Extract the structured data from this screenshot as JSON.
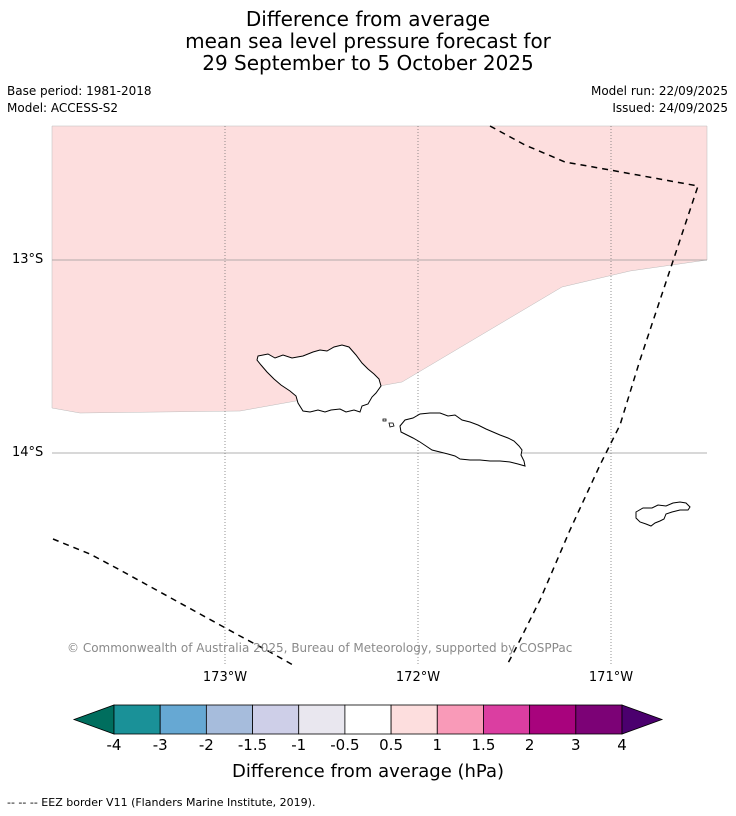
{
  "title": {
    "line1": "Difference from average",
    "line2": "mean sea level pressure forecast for",
    "line3": "29 September to 5 October 2025"
  },
  "meta": {
    "base_period": "Base period: 1981-2018",
    "model": "Model: ACCESS-S2",
    "model_run": "Model run: 22/09/2025",
    "issued": "Issued: 24/09/2025"
  },
  "map": {
    "lat_labels": [
      "13°S",
      "14°S"
    ],
    "lon_labels": [
      "173°W",
      "172°W",
      "171°W"
    ],
    "copyright": "© Commonwealth of Australia 2025, Bureau of Meteorology, supported by COSPPac",
    "anomaly_fill_color": "#fddede"
  },
  "colorbar": {
    "ticks": [
      "-4",
      "-3",
      "-2",
      "-1.5",
      "-1",
      "-0.5",
      "0.5",
      "1",
      "1.5",
      "2",
      "3",
      "4"
    ],
    "colors": [
      "#006e5e",
      "#1a9198",
      "#66a8d3",
      "#a6bcdc",
      "#cecfe8",
      "#e9e7ef",
      "#ffffff",
      "#fddede",
      "#f99ab8",
      "#db3ea1",
      "#a8037d",
      "#7c0276",
      "#4b006e"
    ],
    "label": "Difference from average (hPa)"
  },
  "footnote": "--  --  -- EEZ border V11 (Flanders Marine Institute, 2019)."
}
